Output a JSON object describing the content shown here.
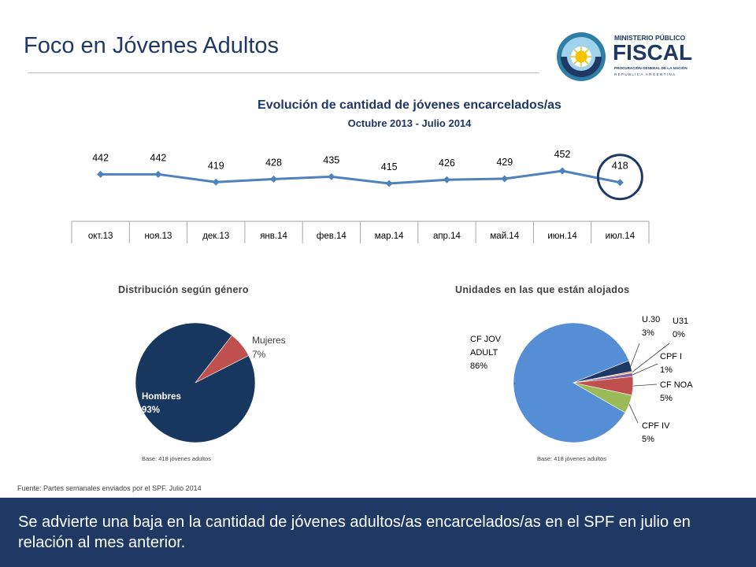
{
  "header": {
    "title": "Foco en Jóvenes Adultos",
    "logo": {
      "line1": "MINISTERIO PÚBLICO",
      "line2": "FISCAL",
      "line3": "PROCURACIÓN GENERAL DE LA NACIÓN",
      "line4": "REPÚBLICA ARGENTINA",
      "icon": "argentina-sun-emblem"
    }
  },
  "chart_data": [
    {
      "type": "line",
      "title": "Evolución de cantidad de jóvenes encarcelados/as",
      "subtitle": "Octubre 2013 - Julio 2014",
      "categories": [
        "окт.13",
        "ноя.13",
        "дек.13",
        "янв.14",
        "фев.14",
        "мар.14",
        "апр.14",
        "май.14",
        "июн.14",
        "июл.14"
      ],
      "series": [
        {
          "values": [
            442,
            442,
            419,
            428,
            435,
            415,
            426,
            429,
            452,
            418
          ]
        }
      ],
      "data_labels": [
        "442",
        "442",
        "419",
        "428",
        "435",
        "415",
        "426",
        "429",
        "452",
        "418"
      ],
      "highlight_last_point": true,
      "grid": false,
      "color": "#4f81bd"
    },
    {
      "type": "pie",
      "title": "Distribución según género",
      "slices": [
        {
          "label": "Hombres",
          "value": 93,
          "display": "93%",
          "color": "#17375e"
        },
        {
          "label": "Mujeres",
          "value": 7,
          "display": "7%",
          "color": "#c0504d"
        }
      ],
      "base_note": "Base: 418 jóvenes adultos"
    },
    {
      "type": "pie",
      "title": "Unidades en las que están alojados",
      "slices": [
        {
          "label": "CF JOV ADULT",
          "label_lines": [
            "CF JOV",
            "ADULT"
          ],
          "value": 86,
          "display": "86%",
          "color": "#558ed5"
        },
        {
          "label": "U.30",
          "value": 3,
          "display": "3%",
          "color": "#1f3864"
        },
        {
          "label": "U31",
          "value": 0.4,
          "display": "0%",
          "color": "#f79646"
        },
        {
          "label": "CPF I",
          "value": 1,
          "display": "1%",
          "color": "#8064a2"
        },
        {
          "label": "CF NOA",
          "value": 5,
          "display": "5%",
          "color": "#c0504d"
        },
        {
          "label": "CPF IV",
          "value": 5,
          "display": "5%",
          "color": "#9bbb59"
        }
      ],
      "base_note": "Base: 418 jóvenes adultos"
    }
  ],
  "source": "Fuente: Partes semanales enviados por el SPF. Julio 2014",
  "footer": {
    "text": "Se advierte una baja en la cantidad de jóvenes adultos/as encarcelados/as en el SPF en julio en relación al mes anterior."
  }
}
